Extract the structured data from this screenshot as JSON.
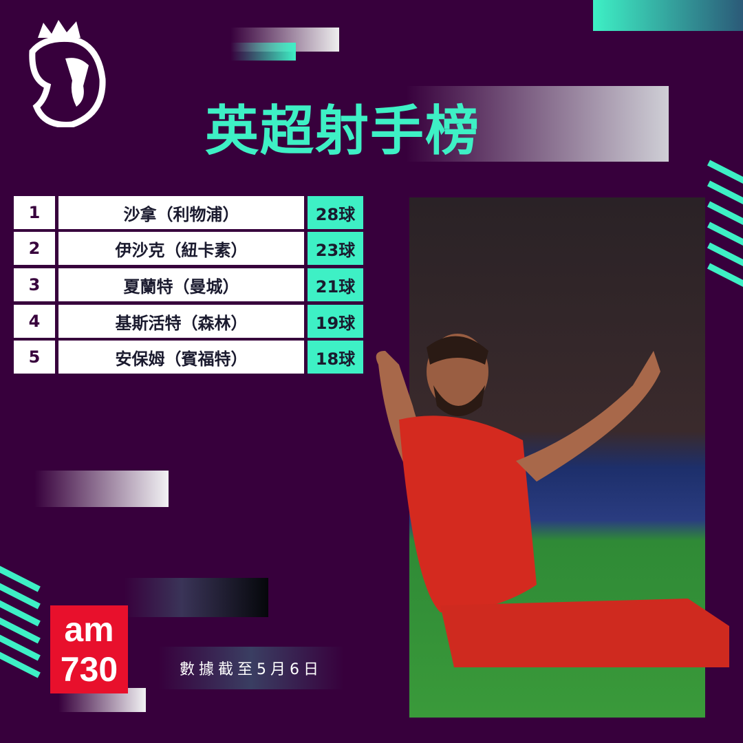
{
  "title": "英超射手榜",
  "scorers": [
    {
      "rank": "1",
      "name": "沙拿（利物浦）",
      "goals": "28球"
    },
    {
      "rank": "2",
      "name": "伊沙克（紐卡素）",
      "goals": "23球"
    },
    {
      "rank": "3",
      "name": "夏蘭特（曼城）",
      "goals": "21球"
    },
    {
      "rank": "4",
      "name": "基斯活特（森林）",
      "goals": "19球"
    },
    {
      "rank": "5",
      "name": "安保姆（賓福特）",
      "goals": "18球"
    }
  ],
  "footer_note": "數據截至5月6日",
  "brand_logo": "am730",
  "league_logo": "premier-league-lion",
  "colors": {
    "background": "#37003c",
    "accent": "#3ef0c5",
    "brand_red": "#e8102c"
  }
}
